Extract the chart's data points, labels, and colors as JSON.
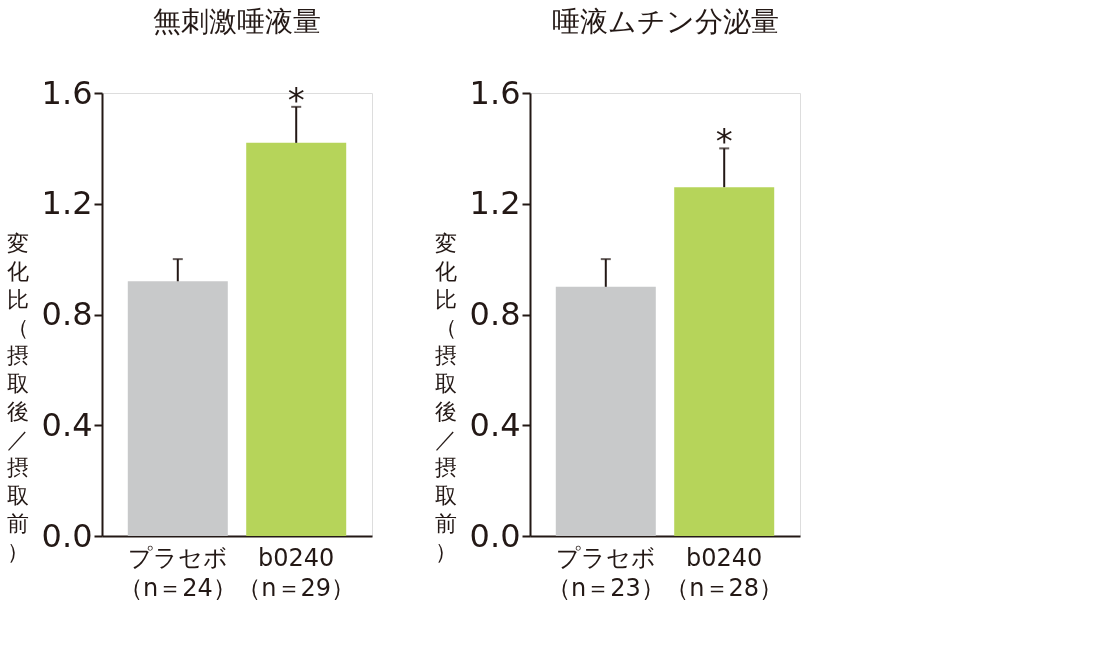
{
  "chart_data": [
    {
      "type": "bar",
      "title": "無刺激唾液量",
      "ylabel": "変化比（摂取後／摂取前）",
      "categories": [
        "プラセボ（n＝24）",
        "b0240（n＝29）"
      ],
      "values": [
        0.92,
        1.42
      ],
      "colors": [
        "#c8c9ca",
        "#b6d45a"
      ],
      "errors": [
        [
          0.92,
          1.0
        ],
        [
          1.42,
          1.55
        ]
      ],
      "ylim": [
        0,
        1.6
      ],
      "yticks": [
        {
          "value": 0,
          "label": "0.0"
        },
        0.4,
        0.8,
        1.2,
        1.6
      ],
      "grid": false,
      "annotations": [
        "*"
      ]
    },
    {
      "type": "bar",
      "title": "唾液ムチン分泌量",
      "ylabel": "変化比（摂取後／摂取前）",
      "categories": [
        "プラセボ（n＝23）",
        "b0240（n＝28）"
      ],
      "values": [
        0.9,
        1.26
      ],
      "colors": [
        "#c8c9ca",
        "#b6d45a"
      ],
      "errors": [
        [
          0.9,
          1.0
        ],
        [
          1.26,
          1.4
        ]
      ],
      "ylim": [
        0,
        1.6
      ],
      "yticks": [
        {
          "value": 0,
          "label": "0.0"
        },
        0.4,
        0.8,
        1.2,
        1.6
      ],
      "grid": false,
      "annotations": [
        "*"
      ]
    }
  ]
}
